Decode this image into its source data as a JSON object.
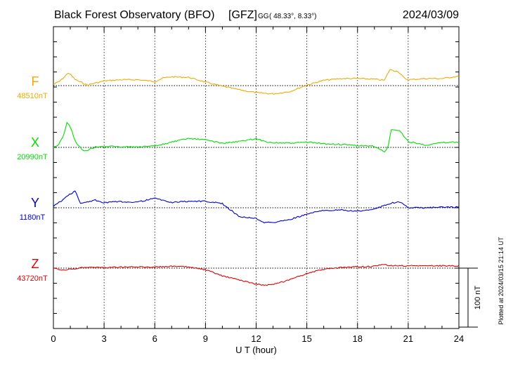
{
  "header": {
    "title": "Black Forest Observatory (BFO)",
    "agency": "[GFZ]",
    "coord_system": "GG",
    "coords": "( 48.33°,   8.33°)",
    "date": "2024/03/09"
  },
  "footer": {
    "plotted": "Plotted at 2024/03/15 21:14 UT"
  },
  "colors": {
    "F": "#f5a800",
    "X": "#00e000",
    "Y": "#0000d0",
    "Z": "#e00000",
    "axis": "#000000",
    "grid": "#000000"
  },
  "chart_data": {
    "type": "line",
    "xlabel": "U T (hour)",
    "xlim": [
      0,
      24
    ],
    "x_ticks": [
      "0",
      "3",
      "6",
      "9",
      "12",
      "15",
      "18",
      "21",
      "24"
    ],
    "scale_bar_label": "100 nT",
    "scale_bar_nT": 100,
    "series": [
      {
        "name": "F",
        "baseline_label": "48510nT",
        "baseline_nT": 48510,
        "color": "#f5a800",
        "x": [
          0,
          0.4,
          0.9,
          1.3,
          2,
          3,
          4,
          5,
          6,
          6.5,
          7,
          8,
          9,
          10,
          11,
          12,
          13,
          14,
          15,
          16,
          17,
          18,
          19,
          19.6,
          19.9,
          20.4,
          20.8,
          21,
          22,
          23,
          24
        ],
        "y": [
          48512,
          48518,
          48532,
          48520,
          48511,
          48518,
          48520,
          48520,
          48517,
          48523,
          48525,
          48524,
          48516,
          48509,
          48503,
          48498,
          48496,
          48500,
          48511,
          48519,
          48522,
          48522,
          48521,
          48519,
          48537,
          48534,
          48522,
          48520,
          48522,
          48522,
          48526
        ]
      },
      {
        "name": "X",
        "baseline_label": "20990nT",
        "baseline_nT": 20990,
        "color": "#00e000",
        "x": [
          0,
          0.3,
          0.6,
          0.8,
          1,
          1.3,
          1.8,
          2.5,
          3,
          3.5,
          4,
          5,
          6,
          7,
          8,
          9,
          10,
          11,
          12,
          12.5,
          13,
          14,
          15,
          16,
          17,
          18,
          19,
          19.6,
          19.8,
          20,
          20.5,
          21,
          22,
          23,
          24
        ],
        "y": [
          20990,
          20995,
          21010,
          21032,
          21025,
          21000,
          20983,
          20991,
          20991,
          20992,
          20991,
          20991,
          20992,
          20999,
          21005,
          21003,
          20997,
          21000,
          21005,
          21000,
          20998,
          20997,
          20999,
          20996,
          20995,
          20993,
          20992,
          20982,
          20990,
          21020,
          21018,
          21000,
          20994,
          20998,
          20999
        ]
      },
      {
        "name": "Y",
        "baseline_label": "1180nT",
        "baseline_nT": 1180,
        "color": "#0000d0",
        "x": [
          0,
          0.5,
          0.9,
          1.3,
          1.6,
          2,
          2.5,
          3,
          3.5,
          4,
          5,
          6,
          7,
          8,
          9,
          10,
          11,
          12,
          12.5,
          13,
          14,
          15,
          16,
          17,
          18,
          19,
          20,
          20.5,
          21,
          22,
          23,
          24
        ],
        "y": [
          1183,
          1192,
          1202,
          1208,
          1187,
          1190,
          1193,
          1188,
          1190,
          1190,
          1190,
          1196,
          1189,
          1191,
          1191,
          1187,
          1165,
          1162,
          1155,
          1155,
          1160,
          1169,
          1176,
          1176,
          1174,
          1178,
          1188,
          1190,
          1180,
          1180,
          1181,
          1181
        ]
      },
      {
        "name": "Z",
        "baseline_label": "43720nT",
        "baseline_nT": 43720,
        "color": "#e00000",
        "x": [
          0,
          0.5,
          1,
          1.5,
          2,
          3,
          4,
          5,
          6,
          7,
          8,
          9,
          10,
          11,
          12,
          12.5,
          13,
          14,
          15,
          16,
          17,
          18,
          19,
          19.5,
          20,
          21,
          22,
          23,
          24
        ],
        "y": [
          43720,
          43716,
          43718,
          43720,
          43722,
          43721,
          43722,
          43722,
          43722,
          43723,
          43722,
          43717,
          43707,
          43700,
          43693,
          43691,
          43692,
          43700,
          43711,
          43718,
          43721,
          43722,
          43723,
          43726,
          43724,
          43724,
          43724,
          43724,
          43724
        ]
      }
    ]
  }
}
